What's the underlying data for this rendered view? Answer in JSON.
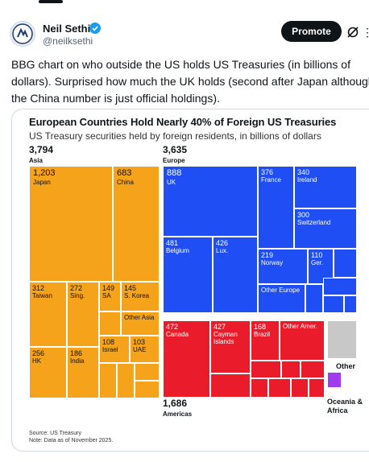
{
  "post": {
    "author_name": "Neil Sethi",
    "handle": "@neilksethi",
    "promote_label": "Promote",
    "text_lines": [
      "BBG chart on who outside the US holds US Treasuries (in billions of",
      "dollars). Surprised how much the UK holds (second after Japan although",
      "the China number is just official holdings)."
    ]
  },
  "icons": [
    "avatar-logo",
    "verified-badge-icon",
    "grok-icon",
    "more-icon"
  ],
  "colors": {
    "asia": "#f5a31a",
    "europe": "#1f4ef5",
    "americas": "#ea1c2c",
    "other": "#c8c8c8",
    "oceania": "#a23bf0",
    "verified": "#1d9bf0"
  },
  "chart_data": {
    "type": "treemap",
    "title": "European Countries Hold Nearly 40% of Foreign US Treasuries",
    "subtitle": "US Treasury securities held by foreign residents, in billions of dollars",
    "groups": [
      {
        "name": "Asia",
        "value": "3,794",
        "items": [
          {
            "label": "Japan",
            "value": "1,203"
          },
          {
            "label": "China",
            "value": "683"
          },
          {
            "label": "Taiwan",
            "value": "312"
          },
          {
            "label": "Sing.",
            "value": "272"
          },
          {
            "label": "SA",
            "value": "149"
          },
          {
            "label": "S. Korea",
            "value": "145"
          },
          {
            "label": "Other Asia",
            "value": ""
          },
          {
            "label": "HK",
            "value": "256"
          },
          {
            "label": "India",
            "value": "186"
          },
          {
            "label": "Israel",
            "value": "108"
          },
          {
            "label": "UAE",
            "value": "103"
          }
        ]
      },
      {
        "name": "Europe",
        "value": "3,635",
        "items": [
          {
            "label": "UK",
            "value": "888"
          },
          {
            "label": "France",
            "value": "376"
          },
          {
            "label": "Ireland",
            "value": "340"
          },
          {
            "label": "Switzerland",
            "value": "300"
          },
          {
            "label": "Belgium",
            "value": "481"
          },
          {
            "label": "Lux.",
            "value": "426"
          },
          {
            "label": "Norway",
            "value": "219"
          },
          {
            "label": "Ger.",
            "value": "110"
          },
          {
            "label": "Other Europe",
            "value": ""
          }
        ]
      },
      {
        "name": "Americas",
        "value": "1,686",
        "items": [
          {
            "label": "Canada",
            "value": "472"
          },
          {
            "label": "Cayman Islands",
            "value": "427"
          },
          {
            "label": "Brazil",
            "value": "168"
          },
          {
            "label": "Other Amer.",
            "value": ""
          }
        ]
      },
      {
        "name": "Other",
        "value": "",
        "items": []
      },
      {
        "name": "Oceania & Africa",
        "value": "",
        "items": []
      }
    ],
    "source": "Source: US Treasury",
    "note": "Note: Data as of November 2025."
  }
}
